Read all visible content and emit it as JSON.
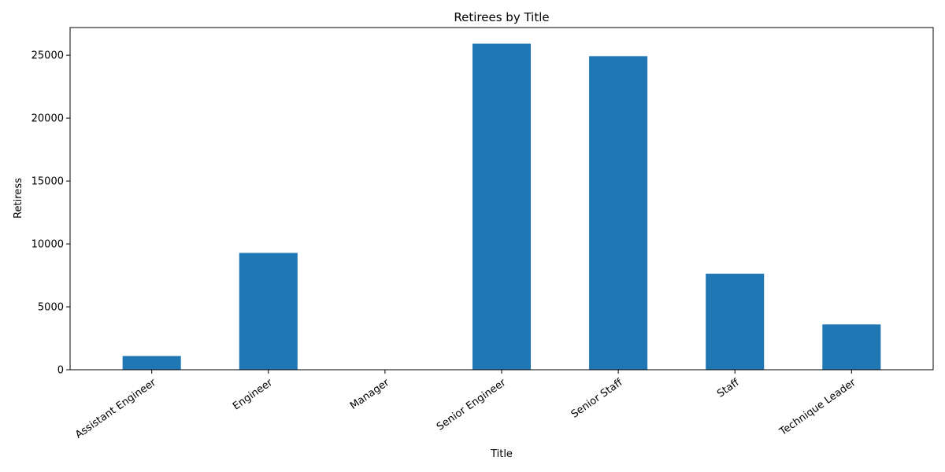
{
  "chart_data": {
    "type": "bar",
    "title": "Retirees by Title",
    "xlabel": "Title",
    "ylabel": "Retiress",
    "categories": [
      "Assistant Engineer",
      "Engineer",
      "Manager",
      "Senior Engineer",
      "Senior Staff",
      "Staff",
      "Technique Leader"
    ],
    "values": [
      1090,
      9285,
      2,
      25916,
      24926,
      7636,
      3603
    ],
    "ylim": [
      0,
      27200
    ],
    "yticks": [
      0,
      5000,
      10000,
      15000,
      20000,
      25000
    ],
    "bar_color": "#1f77b4",
    "grid": false,
    "legend": "none"
  }
}
